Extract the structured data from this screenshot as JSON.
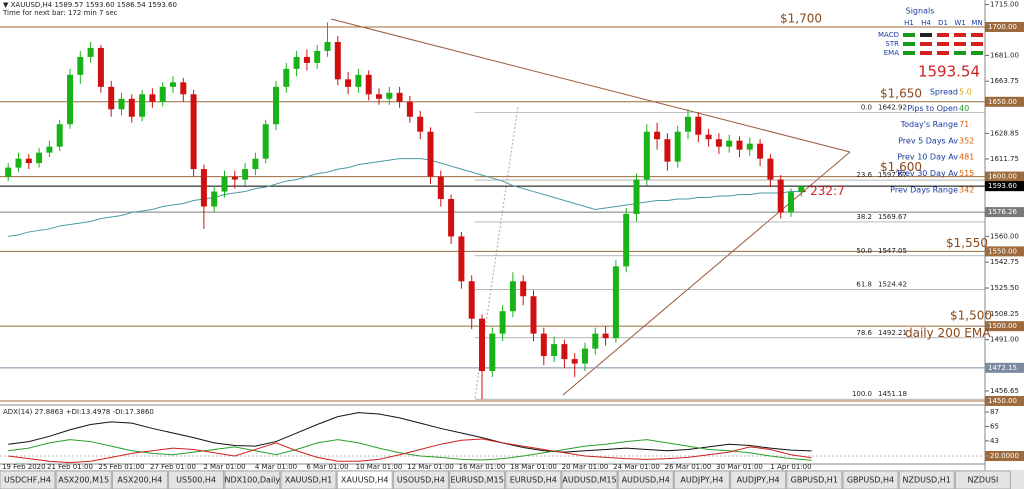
{
  "header": {
    "symbol_line": "▼ XAUUSD,H4  1589.57 1593.60 1586.54 1593.60",
    "timer": "Time for next bar: 172 min 7 sec"
  },
  "info_panel": {
    "title": "Signals",
    "timeframes": [
      "H1",
      "H4",
      "D1",
      "W1",
      "MN"
    ],
    "rows": [
      {
        "name": "MACD",
        "colors": [
          "#1a9a1a",
          "#222222",
          "#d42020",
          "#d42020",
          "#d42020"
        ]
      },
      {
        "name": "STR",
        "colors": [
          "#1a9a1a",
          "#d42020",
          "#d42020",
          "#d42020",
          "#d42020"
        ]
      },
      {
        "name": "EMA",
        "colors": [
          "#1a9a1a",
          "#d42020",
          "#d42020",
          "#1a9a1a",
          "#1a9a1a"
        ]
      }
    ],
    "price": "1593.54",
    "stats": [
      {
        "label": "Spread",
        "value": "5.0",
        "color": "#e0a000"
      },
      {
        "label": "Pips to Open",
        "value": "40",
        "color": "#20a020"
      },
      {
        "label": "Today's Range",
        "value": "71",
        "color": "#e06000"
      },
      {
        "label": "Prev 5 Days Av",
        "value": "352",
        "color": "#e06000"
      },
      {
        "label": "Prev 10 Day Av",
        "value": "481",
        "color": "#e06000"
      },
      {
        "label": "Prev 30 Day Av",
        "value": "515",
        "color": "#e06000"
      },
      {
        "label": "Prev Days Range",
        "value": "342",
        "color": "#e06000"
      }
    ]
  },
  "tabs": [
    {
      "label": "USDCHF,H4",
      "active": false
    },
    {
      "label": "ASX200,M15",
      "active": false
    },
    {
      "label": "ASX200,H4",
      "active": false
    },
    {
      "label": "US500,H4",
      "active": false
    },
    {
      "label": "NDX100,Daily",
      "active": false
    },
    {
      "label": "XAUUSD,H1",
      "active": false
    },
    {
      "label": "XAUUSD,H4",
      "active": true
    },
    {
      "label": "USOUSD,H4",
      "active": false
    },
    {
      "label": "EURUSD,M15",
      "active": false
    },
    {
      "label": "EURUSD,H4",
      "active": false
    },
    {
      "label": "AUDUSD,M15",
      "active": false
    },
    {
      "label": "AUDUSD,H4",
      "active": false
    },
    {
      "label": "AUDJPY,H4",
      "active": false
    },
    {
      "label": "AUDJPY,H4",
      "active": false
    },
    {
      "label": "GBPUSD,H1",
      "active": false
    },
    {
      "label": "GBPUSD,H4",
      "active": false
    },
    {
      "label": "NZDUSD,H1",
      "active": false
    },
    {
      "label": "NZDUSI",
      "active": false
    }
  ],
  "chart_data": [
    {
      "type": "candlestick",
      "categories": [
        "19 Feb 2020",
        null,
        null,
        null,
        null,
        null,
        "21 Feb 01:00",
        null,
        null,
        null,
        null,
        "25 Feb 01:00",
        null,
        null,
        null,
        null,
        "27 Feb 01:00",
        null,
        null,
        null,
        null,
        "2 Mar 01:00",
        null,
        null,
        null,
        null,
        "4 Mar 01:00",
        null,
        null,
        null,
        null,
        "6 Mar 01:00",
        null,
        null,
        null,
        null,
        "10 Mar 01:00",
        null,
        null,
        null,
        null,
        "12 Mar 01:00",
        null,
        null,
        null,
        null,
        "16 Mar 01:00",
        null,
        null,
        null,
        null,
        "18 Mar 01:00",
        null,
        null,
        null,
        null,
        "20 Mar 01:00",
        null,
        null,
        null,
        null,
        "24 Mar 01:00",
        null,
        null,
        null,
        null,
        "26 Mar 01:00",
        null,
        null,
        null,
        null,
        "30 Mar 01:00",
        null,
        null,
        null,
        null,
        "1 Apr 01:00",
        null
      ],
      "open": [
        1600,
        1606,
        1612,
        1609,
        1616,
        1620,
        1635,
        1668,
        1680,
        1686,
        1660,
        1645,
        1652,
        1640,
        1655,
        1650,
        1660,
        1663,
        1655,
        1605,
        1580,
        1590,
        1600,
        1598,
        1605,
        1612,
        1635,
        1660,
        1672,
        1680,
        1676,
        1684,
        1690,
        1665,
        1660,
        1668,
        1655,
        1652,
        1656,
        1650,
        1640,
        1630,
        1600,
        1585,
        1560,
        1530,
        1505,
        1470,
        1495,
        1510,
        1530,
        1520,
        1495,
        1480,
        1488,
        1478,
        1475,
        1485,
        1495,
        1492,
        1540,
        1575,
        1598,
        1630,
        1625,
        1610,
        1630,
        1640,
        1628,
        1625,
        1620,
        1624,
        1618,
        1622,
        1612,
        1598,
        1576,
        1589.57
      ],
      "high": [
        1609,
        1616,
        1615,
        1619,
        1624,
        1638,
        1672,
        1684,
        1690,
        1688,
        1664,
        1656,
        1655,
        1658,
        1659,
        1663,
        1667,
        1666,
        1658,
        1608,
        1594,
        1604,
        1604,
        1609,
        1616,
        1638,
        1664,
        1676,
        1684,
        1685,
        1688,
        1703,
        1694,
        1670,
        1672,
        1671,
        1659,
        1660,
        1660,
        1654,
        1644,
        1633,
        1604,
        1588,
        1563,
        1534,
        1508,
        1499,
        1514,
        1536,
        1534,
        1524,
        1499,
        1493,
        1491,
        1482,
        1489,
        1499,
        1500,
        1544,
        1579,
        1602,
        1635,
        1636,
        1629,
        1634,
        1645,
        1643,
        1632,
        1629,
        1628,
        1627,
        1626,
        1625,
        1615,
        1601,
        1592,
        1593.6
      ],
      "low": [
        1597,
        1603,
        1605,
        1606,
        1613,
        1617,
        1632,
        1662,
        1676,
        1656,
        1640,
        1641,
        1636,
        1637,
        1646,
        1647,
        1656,
        1650,
        1600,
        1565,
        1576,
        1586,
        1592,
        1594,
        1601,
        1609,
        1631,
        1656,
        1667,
        1671,
        1672,
        1680,
        1661,
        1655,
        1656,
        1651,
        1648,
        1648,
        1646,
        1636,
        1625,
        1595,
        1580,
        1555,
        1525,
        1498,
        1451,
        1466,
        1490,
        1506,
        1514,
        1490,
        1474,
        1476,
        1472,
        1466,
        1470,
        1481,
        1487,
        1489,
        1536,
        1570,
        1594,
        1618,
        1604,
        1606,
        1625,
        1623,
        1620,
        1615,
        1616,
        1613,
        1614,
        1607,
        1593,
        1572,
        1573,
        1586.54
      ],
      "close": [
        1606,
        1612,
        1609,
        1616,
        1620,
        1635,
        1668,
        1680,
        1686,
        1660,
        1645,
        1652,
        1640,
        1655,
        1650,
        1660,
        1663,
        1655,
        1605,
        1580,
        1590,
        1600,
        1598,
        1605,
        1612,
        1635,
        1660,
        1672,
        1680,
        1676,
        1684,
        1690,
        1665,
        1660,
        1668,
        1655,
        1652,
        1656,
        1650,
        1640,
        1630,
        1600,
        1585,
        1560,
        1530,
        1505,
        1470,
        1495,
        1510,
        1530,
        1520,
        1495,
        1480,
        1488,
        1478,
        1475,
        1485,
        1495,
        1492,
        1540,
        1575,
        1598,
        1630,
        1625,
        1610,
        1630,
        1640,
        1628,
        1625,
        1620,
        1624,
        1618,
        1622,
        1612,
        1598,
        1576,
        1589.57,
        1593.6
      ],
      "up_color": "#19b219",
      "down_color": "#d01010",
      "series": [
        {
          "color": "#4a9aa8",
          "values": [
            1560,
            1561,
            1563,
            1564,
            1565,
            1567,
            1568,
            1569,
            1570,
            1572,
            1573,
            1574,
            1576,
            1577,
            1578,
            1580,
            1581,
            1582,
            1584,
            1585,
            1586,
            1588,
            1589,
            1590,
            1592,
            1593,
            1595,
            1597,
            1598,
            1600,
            1602,
            1603,
            1605,
            1606,
            1608,
            1609,
            1610,
            1611,
            1612,
            1612,
            1612,
            1611,
            1609,
            1607,
            1605,
            1603,
            1601,
            1599,
            1597,
            1594,
            1592,
            1590,
            1588,
            1586,
            1584,
            1582,
            1580,
            1578,
            1579,
            1580,
            1581,
            1582,
            1583,
            1584,
            1584,
            1585,
            1585,
            1586,
            1586,
            1587,
            1587,
            1588,
            1588,
            1589,
            1589,
            1589,
            1590,
            1590
          ]
        }
      ],
      "ylim": [
        1447.3,
        1718.05
      ],
      "yticks": [
        {
          "value": 1715,
          "label": "1715.00"
        },
        {
          "value": 1681,
          "label": "1681.00"
        },
        {
          "value": 1663.75,
          "label": "1663.75"
        },
        {
          "value": 1628.85,
          "label": "1628.85"
        },
        {
          "value": 1611.75,
          "label": "1611.75"
        },
        {
          "value": 1560,
          "label": "1560.00"
        },
        {
          "value": 1542.75,
          "label": "1542.75"
        },
        {
          "value": 1525.5,
          "label": "1525.50"
        },
        {
          "value": 1508.25,
          "label": "1508.25"
        },
        {
          "value": 1491,
          "label": "1491.00"
        },
        {
          "value": 1456.65,
          "label": "1456.65"
        }
      ],
      "levels": [
        {
          "price": 1700,
          "label": "$1,700",
          "axis_label": "1700.00",
          "color": "#9c6a3c"
        },
        {
          "price": 1650,
          "label": "$1,650",
          "axis_label": "1650.00",
          "color": "#9c6a3c"
        },
        {
          "price": 1600,
          "label": "$1,600",
          "axis_label": "1600.00",
          "color": "#9c6a3c"
        },
        {
          "price": 1593.6,
          "axis_label": "1593.60",
          "color": "#000000"
        },
        {
          "price": 1576.26,
          "axis_label": "1576.26",
          "color": "#7a7a7a"
        },
        {
          "price": 1550,
          "label": "$1,550",
          "axis_label": "1550.00",
          "color": "#9c6a3c"
        },
        {
          "price": 1500,
          "label": "$1,500",
          "axis_label": "1500.00",
          "color": "#9c6a3c"
        },
        {
          "price": 1472.15,
          "axis_label": "1472.15",
          "color": "#7a8aa0"
        },
        {
          "price": 1450,
          "axis_label": "1450.00",
          "color": "#9c6a3c"
        }
      ],
      "fib": [
        {
          "level": "0.0",
          "price": 1642.92
        },
        {
          "level": "23.6",
          "price": 1597.67
        },
        {
          "level": "38.2",
          "price": 1569.67
        },
        {
          "level": "50.0",
          "price": 1547.05
        },
        {
          "level": "61.8",
          "price": 1524.42
        },
        {
          "level": "78.6",
          "price": 1492.21
        },
        {
          "level": "100.0",
          "price": 1451.18
        }
      ],
      "annotations": [
        "daily 200 EMA",
        "- 232:7"
      ]
    },
    {
      "type": "line",
      "title": "ADX(14) 27.8863 +DI:13.4978 -DI:17.3860",
      "categories": [
        null,
        null,
        null,
        null,
        null,
        null,
        null,
        null,
        null,
        null,
        null,
        null,
        null,
        null,
        null,
        null,
        null,
        null,
        null,
        null,
        null,
        null,
        null,
        null,
        null,
        null,
        null,
        null,
        null,
        null,
        null,
        null,
        null,
        null,
        null,
        null,
        null,
        null,
        null,
        null
      ],
      "series": [
        {
          "color": "#111111",
          "values": [
            38,
            42,
            50,
            60,
            68,
            72,
            70,
            62,
            55,
            48,
            40,
            36,
            35,
            42,
            55,
            68,
            80,
            86,
            84,
            78,
            70,
            62,
            55,
            48,
            40,
            33,
            28,
            26,
            28,
            30,
            32,
            30,
            28,
            30,
            34,
            38,
            36,
            32,
            29,
            27.89
          ]
        },
        {
          "color": "#2aa02a",
          "values": [
            28,
            32,
            40,
            45,
            42,
            35,
            28,
            24,
            22,
            26,
            30,
            34,
            28,
            22,
            30,
            40,
            45,
            40,
            32,
            25,
            20,
            18,
            15,
            14,
            16,
            20,
            25,
            30,
            35,
            38,
            42,
            45,
            40,
            35,
            30,
            28,
            25,
            20,
            16,
            13.5
          ]
        },
        {
          "color": "#d02020",
          "values": [
            20,
            16,
            12,
            10,
            12,
            18,
            24,
            28,
            32,
            30,
            25,
            20,
            30,
            40,
            28,
            18,
            12,
            12,
            15,
            22,
            30,
            38,
            44,
            46,
            40,
            35,
            30,
            25,
            20,
            18,
            16,
            15,
            16,
            18,
            22,
            26,
            34,
            30,
            22,
            17.39
          ]
        }
      ],
      "ylim": [
        9.4,
        94.6
      ],
      "yticks": [
        87,
        65,
        43,
        {
          "value": 20,
          "label": "20.0000"
        }
      ]
    }
  ]
}
